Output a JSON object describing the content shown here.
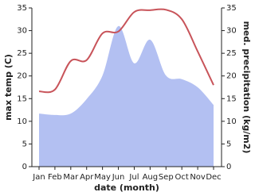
{
  "chart_data": {
    "type": "line",
    "x_label": "date (month)",
    "y_label": "max temp (C)",
    "y2_label": "med. precipitation (kg/m2)",
    "categories": [
      "Jan",
      "Feb",
      "Mar",
      "Apr",
      "May",
      "Jun",
      "Jul",
      "Aug",
      "Sep",
      "Oct",
      "Nov",
      "Dec"
    ],
    "series": [
      {
        "name": "med. precipitation",
        "type": "area",
        "axis": "y2",
        "color": "#b3c0f2",
        "values": [
          11.7,
          11.4,
          11.7,
          14.9,
          20.1,
          31,
          22.8,
          28,
          20.1,
          19.3,
          17.5,
          13.6
        ]
      },
      {
        "name": "max temp",
        "type": "line",
        "color": "#c8545a",
        "values": [
          16.6,
          17,
          23.3,
          23.5,
          29.4,
          29.8,
          34.1,
          34.5,
          34.6,
          32.5,
          25.4,
          18
        ]
      }
    ],
    "ylim": [
      0,
      35
    ],
    "yticks": [
      0,
      5,
      10,
      15,
      20,
      25,
      30,
      35
    ],
    "y2lim": [
      0,
      35
    ],
    "y2ticks": [
      0,
      5,
      10,
      15,
      20,
      25,
      30,
      35
    ]
  }
}
